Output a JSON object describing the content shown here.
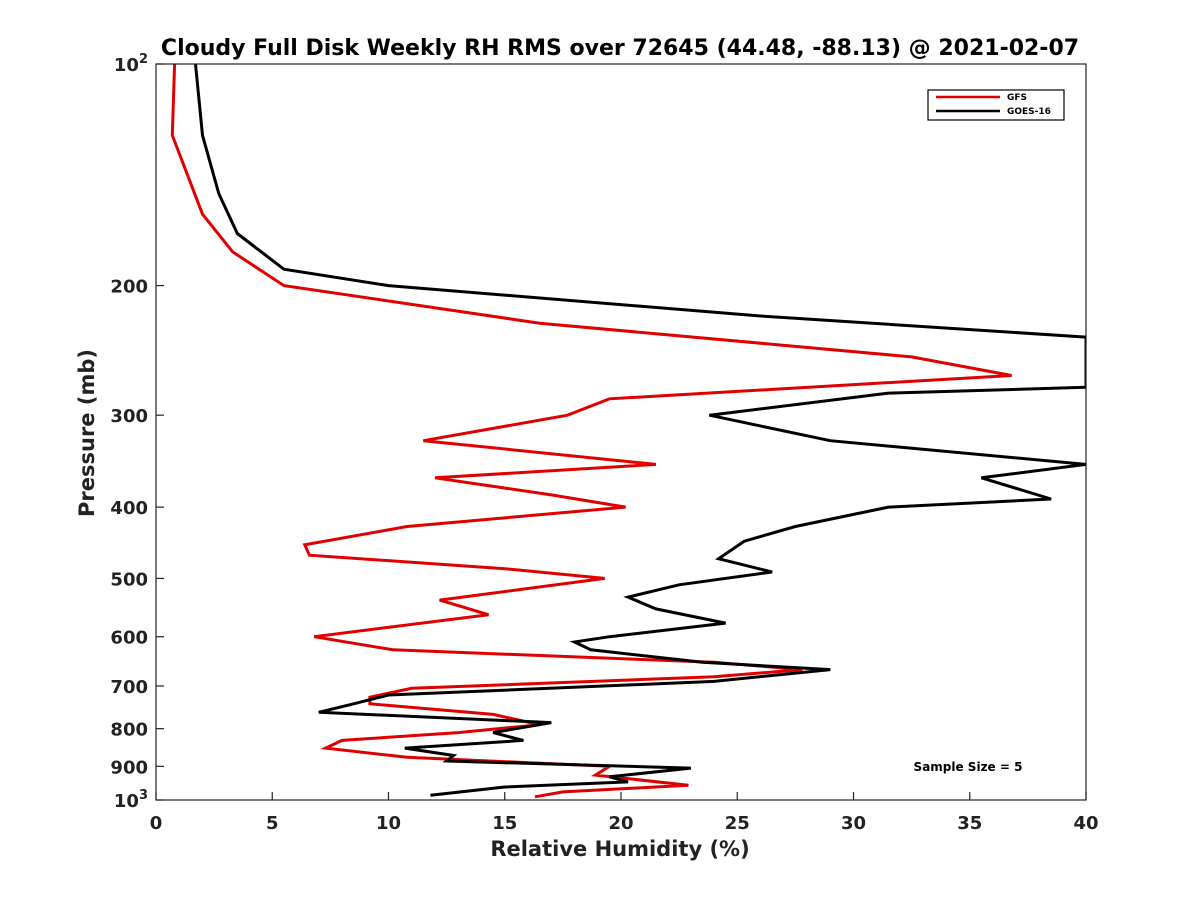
{
  "chart_data": {
    "type": "line",
    "title": "Cloudy Full Disk Weekly RH RMS over 72645 (44.48, -88.13) @ 2021-02-07",
    "xlabel": "Relative Humidity (%)",
    "ylabel": "Pressure (mb)",
    "xlim": [
      0,
      40
    ],
    "ylim": [
      100,
      1000
    ],
    "y_scale": "log",
    "y_reversed": true,
    "grid": false,
    "legend_position": "top-right",
    "x_ticks": [
      {
        "value": 0,
        "label": "0"
      },
      {
        "value": 5,
        "label": "5"
      },
      {
        "value": 10,
        "label": "10"
      },
      {
        "value": 15,
        "label": "15"
      },
      {
        "value": 20,
        "label": "20"
      },
      {
        "value": 25,
        "label": "25"
      },
      {
        "value": 30,
        "label": "30"
      },
      {
        "value": 35,
        "label": "35"
      },
      {
        "value": 40,
        "label": "40"
      }
    ],
    "y_ticks": [
      {
        "value": 100,
        "label": "10",
        "sup": "2"
      },
      {
        "value": 200,
        "label": "200"
      },
      {
        "value": 300,
        "label": "300"
      },
      {
        "value": 400,
        "label": "400"
      },
      {
        "value": 500,
        "label": "500"
      },
      {
        "value": 600,
        "label": "600"
      },
      {
        "value": 700,
        "label": "700"
      },
      {
        "value": 800,
        "label": "800"
      },
      {
        "value": 900,
        "label": "900"
      },
      {
        "value": 1000,
        "label": "10",
        "sup": "3"
      }
    ],
    "annotation": "Sample Size = 5",
    "series": [
      {
        "name": "GFS",
        "color": "#e00000",
        "points": [
          [
            0.8,
            100
          ],
          [
            0.7,
            125
          ],
          [
            2.0,
            160
          ],
          [
            3.3,
            180
          ],
          [
            5.5,
            200
          ],
          [
            16.5,
            225
          ],
          [
            32.5,
            250
          ],
          [
            36.8,
            265
          ],
          [
            19.5,
            285
          ],
          [
            17.7,
            300
          ],
          [
            11.5,
            325
          ],
          [
            21.5,
            350
          ],
          [
            12.0,
            365
          ],
          [
            17.0,
            385
          ],
          [
            20.2,
            400
          ],
          [
            10.8,
            425
          ],
          [
            6.4,
            450
          ],
          [
            6.6,
            465
          ],
          [
            15.0,
            485
          ],
          [
            19.3,
            500
          ],
          [
            12.2,
            535
          ],
          [
            14.3,
            560
          ],
          [
            6.8,
            600
          ],
          [
            10.2,
            625
          ],
          [
            24.0,
            650
          ],
          [
            27.8,
            665
          ],
          [
            24.0,
            680
          ],
          [
            11.0,
            705
          ],
          [
            9.2,
            725
          ],
          [
            9.2,
            740
          ],
          [
            14.5,
            765
          ],
          [
            16.5,
            790
          ],
          [
            13.0,
            810
          ],
          [
            8.0,
            830
          ],
          [
            7.3,
            850
          ],
          [
            10.8,
            875
          ],
          [
            19.5,
            900
          ],
          [
            18.9,
            925
          ],
          [
            22.9,
            955
          ],
          [
            17.5,
            975
          ],
          [
            16.3,
            990
          ]
        ]
      },
      {
        "name": "GOES-16",
        "color": "#000000",
        "points": [
          [
            1.7,
            100
          ],
          [
            2.0,
            125
          ],
          [
            2.7,
            150
          ],
          [
            3.5,
            170
          ],
          [
            5.5,
            190
          ],
          [
            10.0,
            200
          ],
          [
            26.0,
            220
          ],
          [
            40.0,
            235
          ],
          [
            40.0,
            275
          ],
          [
            31.5,
            280
          ],
          [
            23.8,
            300
          ],
          [
            29.0,
            325
          ],
          [
            40.0,
            350
          ],
          [
            35.5,
            365
          ],
          [
            38.5,
            390
          ],
          [
            31.5,
            400
          ],
          [
            27.5,
            425
          ],
          [
            25.3,
            445
          ],
          [
            24.2,
            470
          ],
          [
            26.5,
            490
          ],
          [
            22.5,
            510
          ],
          [
            20.3,
            530
          ],
          [
            21.5,
            550
          ],
          [
            24.5,
            575
          ],
          [
            19.5,
            600
          ],
          [
            18.0,
            610
          ],
          [
            18.7,
            625
          ],
          [
            23.5,
            650
          ],
          [
            29.0,
            665
          ],
          [
            24.0,
            690
          ],
          [
            10.0,
            720
          ],
          [
            8.5,
            740
          ],
          [
            7.0,
            760
          ],
          [
            17.0,
            785
          ],
          [
            14.5,
            810
          ],
          [
            15.8,
            830
          ],
          [
            10.7,
            850
          ],
          [
            12.8,
            870
          ],
          [
            12.5,
            885
          ],
          [
            23.0,
            905
          ],
          [
            19.5,
            930
          ],
          [
            20.3,
            945
          ],
          [
            15.0,
            960
          ],
          [
            11.8,
            985
          ]
        ]
      }
    ]
  }
}
